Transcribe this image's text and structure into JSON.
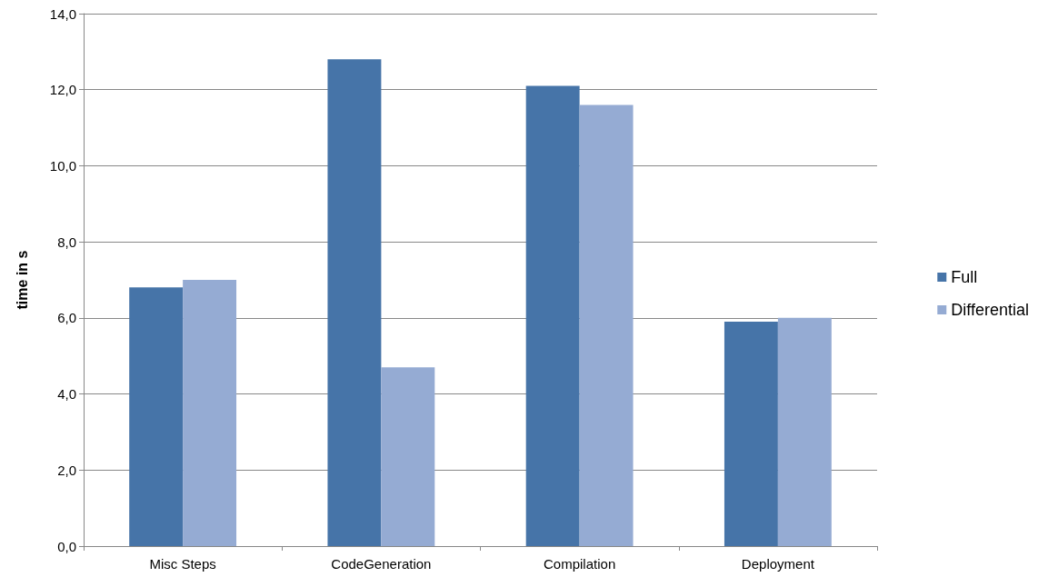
{
  "chart_data": {
    "type": "bar",
    "ylabel": "time in s",
    "categories": [
      "Misc Steps",
      "CodeGeneration",
      "Compilation",
      "Deployment"
    ],
    "series": [
      {
        "name": "Full",
        "color": "#4674a8",
        "values": [
          6.8,
          12.8,
          12.1,
          5.9
        ]
      },
      {
        "name": "Differential",
        "color": "#95abd3",
        "values": [
          7.0,
          4.7,
          11.6,
          6.0
        ]
      }
    ],
    "ylim": [
      0,
      14
    ],
    "yticks": [
      {
        "value": 0,
        "label": "0,0"
      },
      {
        "value": 2,
        "label": "2,0"
      },
      {
        "value": 4,
        "label": "4,0"
      },
      {
        "value": 6,
        "label": "6,0"
      },
      {
        "value": 8,
        "label": "8,0"
      },
      {
        "value": 10,
        "label": "10,0"
      },
      {
        "value": 12,
        "label": "12,0"
      },
      {
        "value": 14,
        "label": "14,0"
      }
    ],
    "grid": "y",
    "legend": "right"
  }
}
